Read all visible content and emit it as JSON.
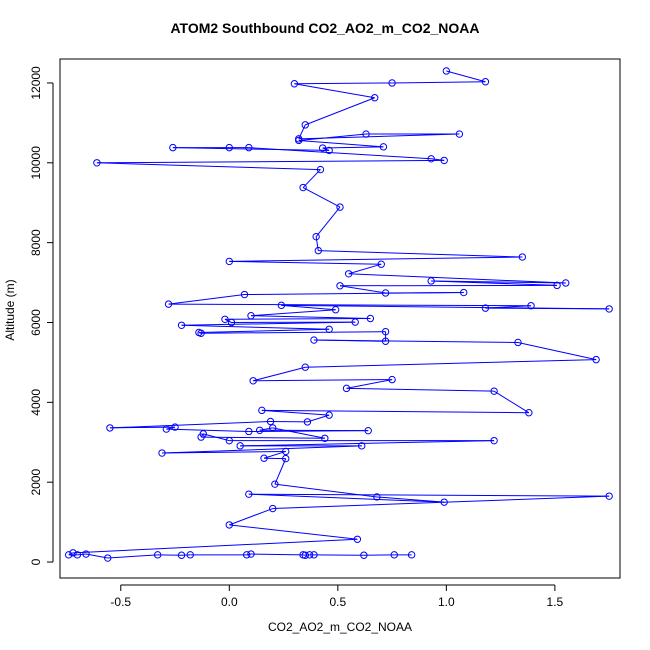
{
  "chart_data": {
    "type": "scatter",
    "title": "ATOM2 Southbound CO2_AO2_m_CO2_NOAA",
    "xlabel": "CO2_AO2_m_CO2_NOAA",
    "ylabel": "Altitude (m)",
    "xlim": [
      -0.78,
      1.8
    ],
    "ylim": [
      -400,
      12600
    ],
    "xticks": [
      "-0.5",
      "0.0",
      "0.5",
      "1.0",
      "1.5"
    ],
    "xtick_values": [
      -0.5,
      0.0,
      0.5,
      1.0,
      1.5
    ],
    "yticks": [
      "0",
      "2000",
      "4000",
      "6000",
      "8000",
      "10000",
      "12000"
    ],
    "ytick_values": [
      0,
      2000,
      4000,
      6000,
      8000,
      10000,
      12000
    ],
    "series_color": "#0000ff",
    "marker": "open-circle",
    "connected": true,
    "points": [
      [
        1.0,
        12300
      ],
      [
        1.18,
        12030
      ],
      [
        0.75,
        12000
      ],
      [
        0.3,
        11980
      ],
      [
        0.67,
        11630
      ],
      [
        0.35,
        10950
      ],
      [
        0.32,
        10600
      ],
      [
        1.06,
        10720
      ],
      [
        0.63,
        10720
      ],
      [
        0.32,
        10560
      ],
      [
        0.71,
        10400
      ],
      [
        0.43,
        10370
      ],
      [
        0.46,
        10310
      ],
      [
        -0.26,
        10380
      ],
      [
        0.0,
        10380
      ],
      [
        0.09,
        10380
      ],
      [
        0.93,
        10100
      ],
      [
        0.99,
        10060
      ],
      [
        -0.61,
        10000
      ],
      [
        0.42,
        9830
      ],
      [
        0.34,
        9380
      ],
      [
        0.51,
        8890
      ],
      [
        0.4,
        8150
      ],
      [
        0.41,
        7800
      ],
      [
        1.35,
        7640
      ],
      [
        0.0,
        7530
      ],
      [
        0.7,
        7460
      ],
      [
        0.55,
        7220
      ],
      [
        1.55,
        6990
      ],
      [
        0.93,
        7040
      ],
      [
        1.51,
        6930
      ],
      [
        0.51,
        6920
      ],
      [
        0.72,
        6740
      ],
      [
        1.08,
        6750
      ],
      [
        0.07,
        6700
      ],
      [
        -0.28,
        6460
      ],
      [
        1.39,
        6420
      ],
      [
        1.18,
        6360
      ],
      [
        1.75,
        6340
      ],
      [
        0.24,
        6430
      ],
      [
        0.49,
        6320
      ],
      [
        0.1,
        6170
      ],
      [
        0.65,
        6100
      ],
      [
        -0.02,
        6080
      ],
      [
        0.01,
        6000
      ],
      [
        0.58,
        6010
      ],
      [
        -0.22,
        5930
      ],
      [
        0.46,
        5830
      ],
      [
        -0.14,
        5750
      ],
      [
        -0.13,
        5730
      ],
      [
        0.72,
        5770
      ],
      [
        0.72,
        5530
      ],
      [
        0.39,
        5560
      ],
      [
        1.33,
        5500
      ],
      [
        1.69,
        5070
      ],
      [
        0.35,
        4880
      ],
      [
        0.11,
        4540
      ],
      [
        0.75,
        4570
      ],
      [
        0.54,
        4350
      ],
      [
        1.22,
        4280
      ],
      [
        1.38,
        3740
      ],
      [
        0.15,
        3800
      ],
      [
        0.46,
        3680
      ],
      [
        0.36,
        3510
      ],
      [
        0.19,
        3520
      ],
      [
        -0.55,
        3360
      ],
      [
        -0.25,
        3380
      ],
      [
        -0.29,
        3330
      ],
      [
        0.09,
        3270
      ],
      [
        0.64,
        3290
      ],
      [
        0.14,
        3300
      ],
      [
        0.2,
        3360
      ],
      [
        0.44,
        3100
      ],
      [
        -0.13,
        3130
      ],
      [
        -0.12,
        3210
      ],
      [
        0.0,
        3040
      ],
      [
        1.22,
        3040
      ],
      [
        0.05,
        2910
      ],
      [
        0.61,
        2910
      ],
      [
        -0.31,
        2730
      ],
      [
        0.26,
        2770
      ],
      [
        0.16,
        2600
      ],
      [
        0.26,
        2590
      ],
      [
        0.21,
        1950
      ],
      [
        0.68,
        1630
      ],
      [
        0.99,
        1500
      ],
      [
        0.09,
        1700
      ],
      [
        1.75,
        1650
      ],
      [
        0.2,
        1340
      ],
      [
        0.0,
        930
      ],
      [
        0.59,
        570
      ],
      [
        -0.72,
        230
      ],
      [
        -0.74,
        180
      ],
      [
        -0.7,
        180
      ],
      [
        -0.66,
        200
      ],
      [
        -0.56,
        100
      ],
      [
        -0.33,
        180
      ],
      [
        -0.22,
        170
      ],
      [
        -0.18,
        180
      ],
      [
        0.08,
        180
      ],
      [
        0.1,
        200
      ],
      [
        0.34,
        180
      ],
      [
        0.35,
        170
      ],
      [
        0.37,
        180
      ],
      [
        0.39,
        180
      ],
      [
        0.62,
        170
      ],
      [
        0.76,
        180
      ],
      [
        0.84,
        180
      ]
    ]
  }
}
